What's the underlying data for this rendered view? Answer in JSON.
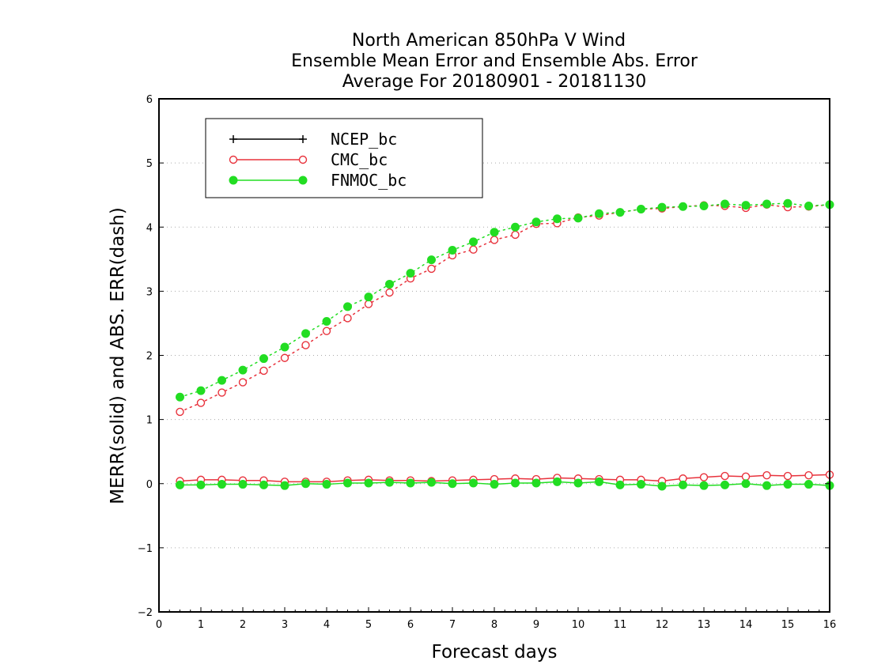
{
  "chart_data": {
    "type": "line",
    "title_lines": [
      "North American 850hPa V Wind",
      "Ensemble Mean Error and Ensemble Abs. Error",
      "Average For 20180901 - 20181130"
    ],
    "xlabel": "Forecast days",
    "ylabel": "MERR(solid) and ABS. ERR(dash)",
    "xlim": [
      0,
      16
    ],
    "ylim": [
      -2,
      6
    ],
    "x_ticks": [
      "0",
      "1",
      "2",
      "3",
      "4",
      "5",
      "6",
      "7",
      "8",
      "9",
      "10",
      "11",
      "12",
      "13",
      "14",
      "15",
      "16"
    ],
    "y_ticks": [
      "−2",
      "−1",
      "0",
      "1",
      "2",
      "3",
      "4",
      "5",
      "6"
    ],
    "grid": "dotted horizontal",
    "legend_position": "top-left",
    "x": [
      0.5,
      1,
      1.5,
      2,
      2.5,
      3,
      3.5,
      4,
      4.5,
      5,
      5.5,
      6,
      6.5,
      7,
      7.5,
      8,
      8.5,
      9,
      9.5,
      10,
      10.5,
      11,
      11.5,
      12,
      12.5,
      13,
      13.5,
      14,
      14.5,
      15,
      15.5,
      16
    ],
    "series": [
      {
        "name": "NCEP_bc",
        "color": "#000000",
        "marker": "plus",
        "merr": [],
        "abs_err": []
      },
      {
        "name": "CMC_bc",
        "color": "#e8323c",
        "marker": "open-circle",
        "merr": [
          0.04,
          0.06,
          0.06,
          0.05,
          0.05,
          0.03,
          0.03,
          0.03,
          0.05,
          0.06,
          0.05,
          0.05,
          0.04,
          0.05,
          0.06,
          0.07,
          0.08,
          0.07,
          0.09,
          0.08,
          0.07,
          0.06,
          0.06,
          0.04,
          0.08,
          0.1,
          0.12,
          0.11,
          0.13,
          0.12,
          0.13,
          0.14
        ],
        "abs_err": [
          1.12,
          1.26,
          1.42,
          1.58,
          1.76,
          1.96,
          2.16,
          2.38,
          2.58,
          2.8,
          2.98,
          3.2,
          3.35,
          3.56,
          3.65,
          3.8,
          3.88,
          4.05,
          4.06,
          4.15,
          4.18,
          4.23,
          4.28,
          4.29,
          4.32,
          4.34,
          4.33,
          4.3,
          4.35,
          4.31,
          4.32,
          4.35
        ]
      },
      {
        "name": "FNMOC_bc",
        "color": "#22dd22",
        "marker": "filled-circle",
        "merr": [
          -0.02,
          -0.02,
          -0.01,
          -0.01,
          -0.02,
          -0.03,
          0.0,
          -0.01,
          0.01,
          0.01,
          0.02,
          0.01,
          0.02,
          0.0,
          0.01,
          -0.01,
          0.01,
          0.01,
          0.03,
          0.01,
          0.03,
          -0.02,
          -0.01,
          -0.04,
          -0.02,
          -0.03,
          -0.02,
          0.0,
          -0.03,
          -0.01,
          -0.01,
          -0.03
        ],
        "abs_err": [
          1.35,
          1.45,
          1.61,
          1.77,
          1.95,
          2.13,
          2.34,
          2.53,
          2.76,
          2.91,
          3.11,
          3.28,
          3.49,
          3.64,
          3.77,
          3.92,
          4.0,
          4.08,
          4.13,
          4.14,
          4.21,
          4.23,
          4.28,
          4.31,
          4.32,
          4.33,
          4.36,
          4.34,
          4.36,
          4.37,
          4.33,
          4.35
        ]
      }
    ]
  }
}
